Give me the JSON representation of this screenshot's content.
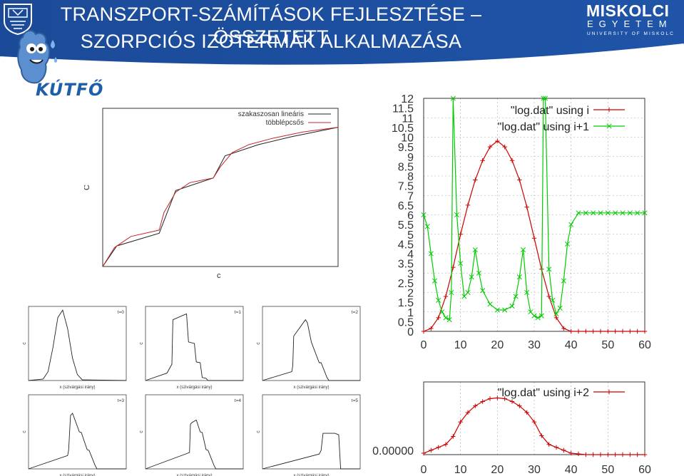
{
  "header": {
    "title_line1": "TRANSZPORT-SZÁMÍTÁSOK FEJLESZTÉSE – ÖSSZETETT",
    "title_line2": "SZORPCIÓS IZOTERMÁK ALKALMAZÁSA",
    "project_logo_text": "KÚTFŐ",
    "university_name": "MISKOLCI",
    "university_line2": "EGYETEM",
    "university_line3": "UNIVERSITY OF MISKOLC",
    "colors": {
      "banner": "#1e4f9e",
      "banner_dark": "#163e82",
      "stripe": "#ffffff"
    }
  },
  "chart_data": [
    {
      "id": "isotherm",
      "type": "line",
      "xlabel": "c",
      "ylabel": "C",
      "xlim": [
        0,
        1
      ],
      "ylim": [
        0,
        1
      ],
      "legend_position": "top-right",
      "series": [
        {
          "name": "szakaszosan lineáris",
          "color": "#222222",
          "x": [
            0,
            0.06,
            0.24,
            0.31,
            0.47,
            0.52,
            0.66,
            0.8,
            1.0
          ],
          "y": [
            0,
            0.13,
            0.21,
            0.48,
            0.56,
            0.7,
            0.77,
            0.82,
            0.88
          ]
        },
        {
          "name": "többlépcsős",
          "color": "#c0282a",
          "x": [
            0,
            0.05,
            0.12,
            0.24,
            0.26,
            0.31,
            0.37,
            0.47,
            0.5,
            0.55,
            0.62,
            0.72,
            0.85,
            1.0
          ],
          "y": [
            0,
            0.12,
            0.19,
            0.23,
            0.34,
            0.47,
            0.53,
            0.56,
            0.63,
            0.72,
            0.77,
            0.81,
            0.85,
            0.88
          ]
        }
      ]
    },
    {
      "id": "log-main",
      "type": "line",
      "xlim": [
        0,
        60
      ],
      "ylim": [
        0,
        12
      ],
      "xticks": [
        "0",
        "10",
        "20",
        "30",
        "40",
        "50",
        "60"
      ],
      "yticks_left": [
        "0",
        "0.5",
        "1",
        "1.5",
        "2",
        "2.5",
        "3",
        "3.5",
        "4",
        "4.5",
        "5",
        "5.5",
        "6",
        "6.5",
        "7",
        "7.5",
        "8",
        "8.5",
        "9",
        "9.5",
        "10",
        "10.5",
        "11",
        "11.5",
        "12"
      ],
      "legend_position": "top-right",
      "grid": true,
      "series": [
        {
          "name": "\"log.dat\" using i",
          "color": "#cc0000",
          "x": [
            0,
            2,
            4,
            6,
            8,
            10,
            12,
            14,
            16,
            18,
            20,
            22,
            24,
            26,
            28,
            30,
            32,
            34,
            36,
            38,
            40,
            42,
            44,
            46,
            48,
            50,
            52,
            54,
            56,
            58,
            60
          ],
          "y": [
            0,
            0.15,
            0.7,
            1.8,
            3.3,
            5.0,
            6.5,
            7.8,
            8.8,
            9.5,
            9.8,
            9.5,
            8.8,
            7.8,
            6.4,
            4.8,
            3.2,
            1.8,
            0.7,
            0.15,
            0,
            0,
            0,
            0,
            0,
            0,
            0,
            0,
            0,
            0,
            0
          ]
        },
        {
          "name": "\"log.dat\" using i+1",
          "color": "#00cc00",
          "x": [
            0,
            1,
            2,
            3,
            4,
            5,
            6,
            7,
            7.5,
            8,
            9,
            10,
            11,
            12,
            13,
            14,
            15,
            16,
            18,
            20,
            22,
            24,
            25,
            26,
            27,
            28,
            29,
            30,
            31,
            32,
            32.5,
            33,
            34,
            35,
            36,
            37,
            38,
            39,
            40,
            42,
            44,
            46,
            48,
            50,
            52,
            54,
            56,
            58,
            60
          ],
          "y": [
            6.0,
            5.4,
            4.0,
            2.6,
            1.6,
            1.0,
            0.7,
            0.6,
            2.0,
            12,
            6,
            3.5,
            1.8,
            2.0,
            2.8,
            4.2,
            3.0,
            2.1,
            1.4,
            1.1,
            1.1,
            1.3,
            1.8,
            2.8,
            4.2,
            2.0,
            1.0,
            0.8,
            0.7,
            0.8,
            12,
            12,
            3.2,
            1.6,
            0.9,
            1.2,
            2.6,
            4.5,
            5.5,
            6.1,
            6.1,
            6.1,
            6.1,
            6.1,
            6.1,
            6.1,
            6.1,
            6.1,
            6.1
          ]
        }
      ]
    },
    {
      "id": "log-bottom",
      "type": "line",
      "xlim": [
        0,
        60
      ],
      "xticks": [
        "0",
        "10",
        "20",
        "30",
        "40",
        "50",
        "60"
      ],
      "ytick_label": "0.00000",
      "legend_position": "top-right",
      "grid": true,
      "series": [
        {
          "name": "\"log.dat\" using i+2",
          "color": "#cc0000",
          "x": [
            0,
            2,
            4,
            6,
            8,
            10,
            12,
            14,
            16,
            18,
            20,
            22,
            24,
            26,
            28,
            30,
            32,
            34,
            36,
            38,
            40,
            42,
            44,
            46,
            48,
            50,
            52,
            54,
            56,
            58,
            60
          ],
          "y": [
            0.02,
            0.06,
            0.1,
            0.14,
            0.25,
            0.45,
            0.58,
            0.67,
            0.73,
            0.77,
            0.78,
            0.77,
            0.73,
            0.67,
            0.58,
            0.45,
            0.26,
            0.14,
            0.1,
            0.06,
            0.02,
            0.01,
            0.0,
            0.0,
            0.0,
            0.0,
            0.0,
            0.0,
            0.0,
            0.0,
            0.0
          ]
        }
      ]
    },
    {
      "id": "small-multiples",
      "type": "line",
      "xlabel": "x (szivárgási irány)",
      "ylabel": "c",
      "panels": [
        {
          "label": "t=0",
          "x": [
            0,
            0.15,
            0.2,
            0.25,
            0.3,
            0.35,
            0.4,
            0.45,
            0.5,
            0.55,
            1.0
          ],
          "y": [
            0,
            0.02,
            0.12,
            0.45,
            0.85,
            0.95,
            0.7,
            0.3,
            0.08,
            0.01,
            0
          ]
        },
        {
          "label": "t=1",
          "x": [
            0,
            0.22,
            0.27,
            0.28,
            0.42,
            0.44,
            0.5,
            0.52,
            0.56,
            0.58,
            0.62,
            0.64,
            1.0
          ],
          "y": [
            0,
            0.1,
            0.22,
            0.82,
            0.9,
            0.52,
            0.5,
            0.25,
            0.24,
            0.04,
            0.03,
            0,
            0
          ]
        },
        {
          "label": "t=2",
          "x": [
            0,
            0.3,
            0.31,
            0.32,
            0.44,
            0.46,
            0.5,
            0.52,
            0.58,
            0.6,
            0.66,
            0.68,
            1.0
          ],
          "y": [
            0,
            0.12,
            0.2,
            0.6,
            0.82,
            0.78,
            0.52,
            0.45,
            0.24,
            0.24,
            0.04,
            0,
            0
          ]
        },
        {
          "label": "t=3",
          "x": [
            0,
            0.4,
            0.41,
            0.43,
            0.45,
            0.52,
            0.54,
            0.6,
            0.62,
            0.68,
            0.7,
            1.0
          ],
          "y": [
            0,
            0.18,
            0.25,
            0.72,
            0.75,
            0.5,
            0.49,
            0.26,
            0.25,
            0.05,
            0,
            0
          ]
        },
        {
          "label": "t=4",
          "x": [
            0,
            0.45,
            0.46,
            0.47,
            0.52,
            0.56,
            0.58,
            0.62,
            0.64,
            0.7,
            0.72,
            1.0
          ],
          "y": [
            0,
            0.22,
            0.6,
            0.62,
            0.66,
            0.5,
            0.49,
            0.26,
            0.25,
            0.05,
            0,
            0
          ]
        },
        {
          "label": "t=5",
          "x": [
            0,
            0.58,
            0.6,
            0.62,
            0.72,
            0.74,
            0.78,
            0.8,
            1.0
          ],
          "y": [
            0,
            0.2,
            0.25,
            0.48,
            0.48,
            0.48,
            0.46,
            0,
            0
          ]
        }
      ]
    }
  ]
}
